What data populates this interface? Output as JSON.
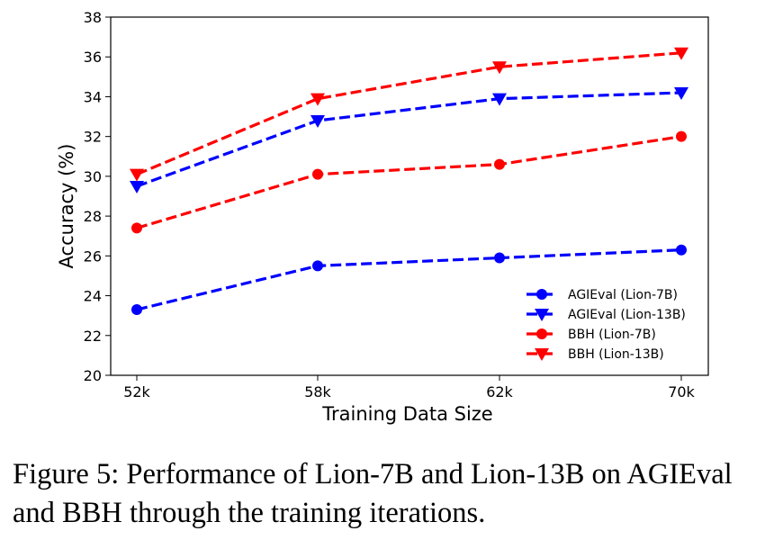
{
  "chart_data": {
    "type": "line",
    "categories": [
      "52k",
      "58k",
      "62k",
      "70k"
    ],
    "xlabel": "Training Data Size",
    "ylabel": "Accuracy (%)",
    "ylim": [
      20,
      38
    ],
    "yticks": [
      20,
      22,
      24,
      26,
      28,
      30,
      32,
      34,
      36,
      38
    ],
    "grid": false,
    "legend_position": "lower-right",
    "series": [
      {
        "name": "AGIEval (Lion-7B)",
        "values": [
          23.3,
          25.5,
          25.9,
          26.3
        ],
        "color": "#0000ff",
        "marker": "circle",
        "linestyle": "dashed"
      },
      {
        "name": "AGIEval (Lion-13B)",
        "values": [
          29.5,
          32.8,
          33.9,
          34.2
        ],
        "color": "#0000ff",
        "marker": "triangle-down",
        "linestyle": "dashed"
      },
      {
        "name": "BBH (Lion-7B)",
        "values": [
          27.4,
          30.1,
          30.6,
          32.0
        ],
        "color": "#ff0000",
        "marker": "circle",
        "linestyle": "dashed"
      },
      {
        "name": "BBH (Lion-13B)",
        "values": [
          30.1,
          33.9,
          35.5,
          36.2
        ],
        "color": "#ff0000",
        "marker": "triangle-down",
        "linestyle": "dashed"
      }
    ]
  },
  "caption": "Figure 5: Performance of Lion-7B and Lion-13B on AGIEval and BBH through the training iterations."
}
